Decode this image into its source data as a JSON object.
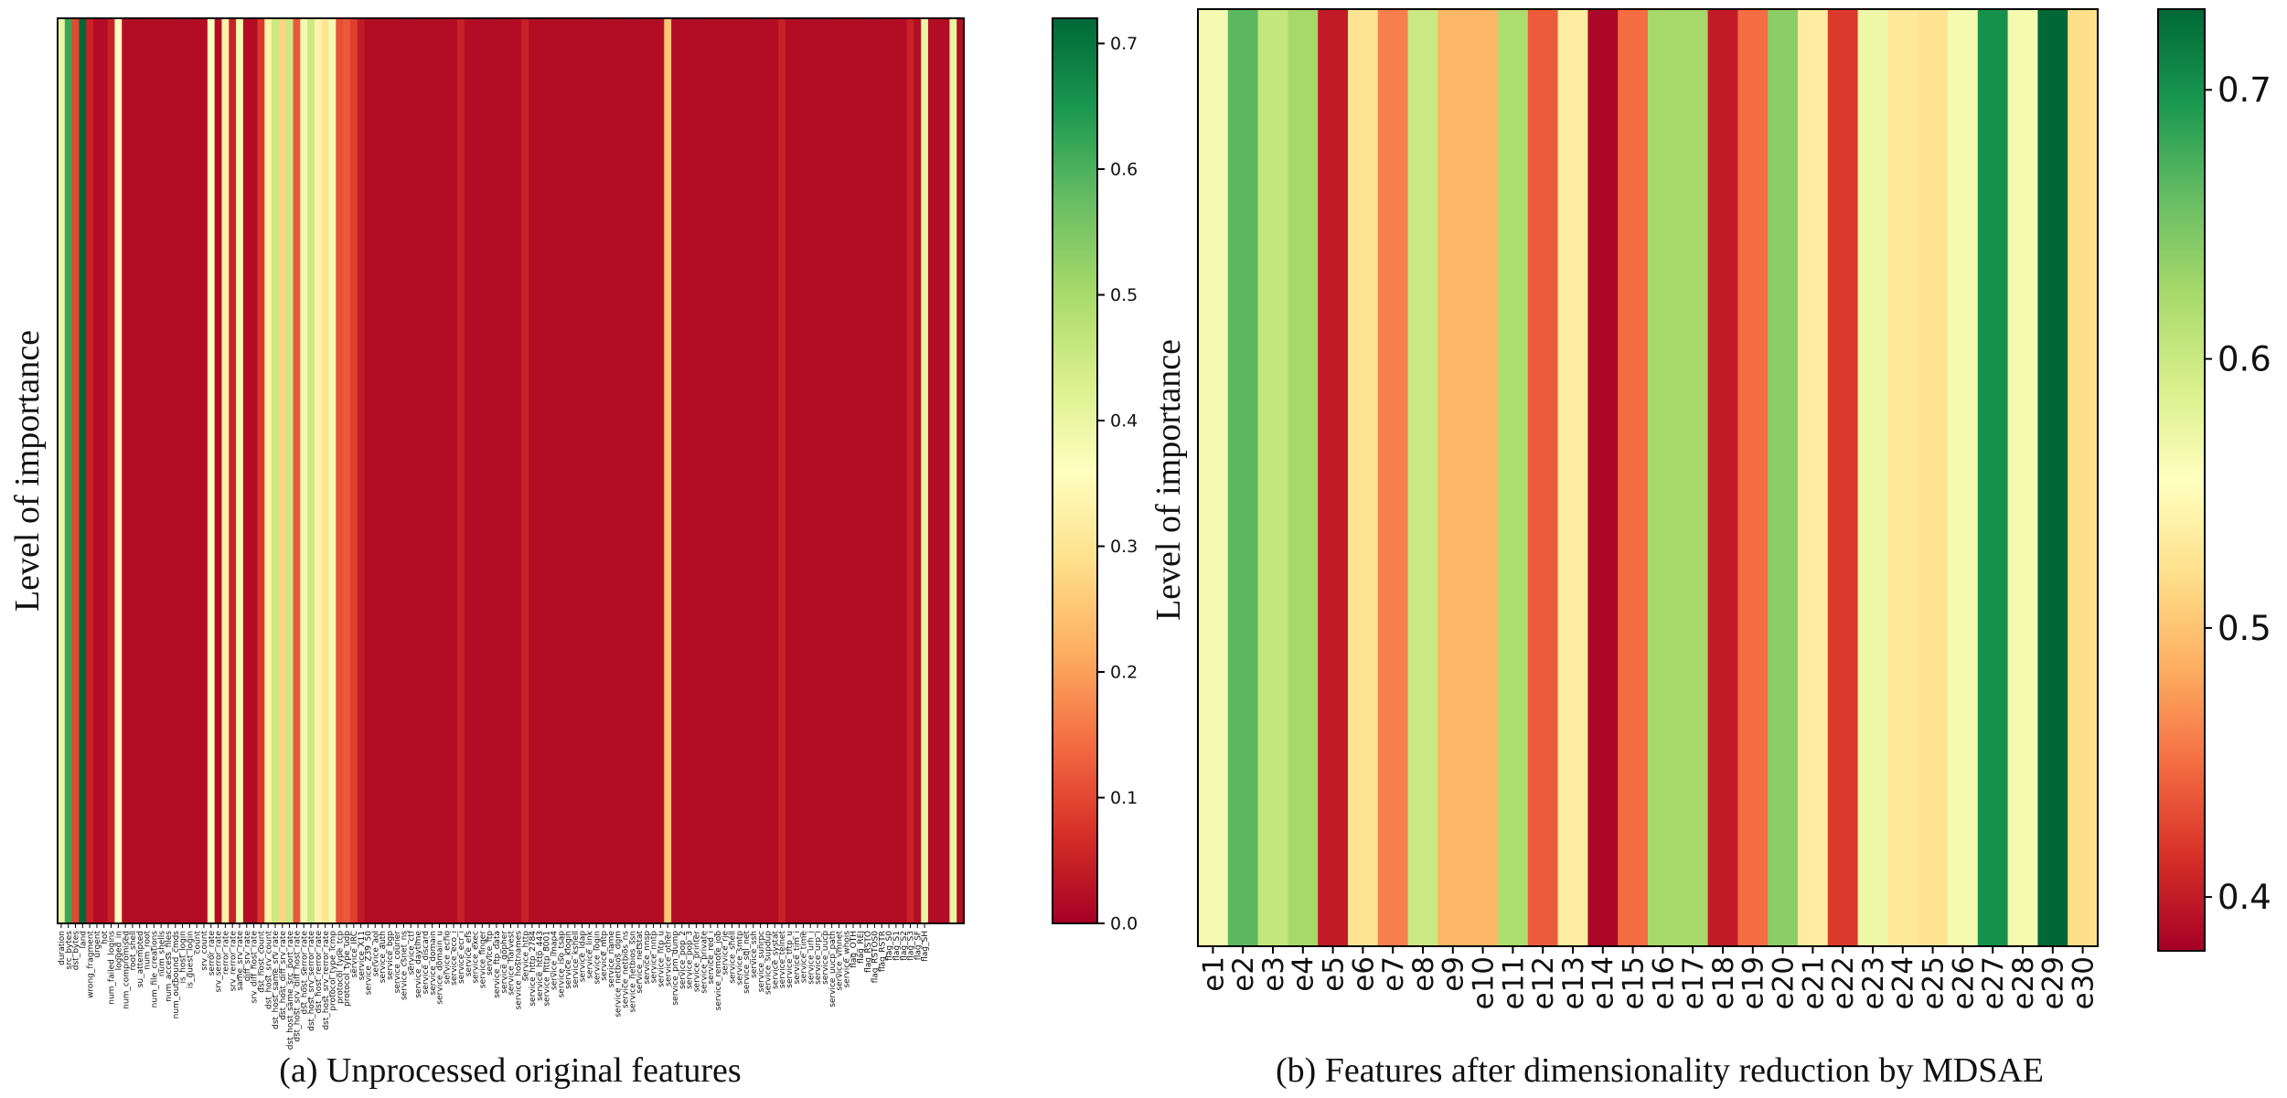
{
  "chart_data": [
    {
      "type": "heatmap",
      "title": "",
      "caption": "(a) Unprocessed original features",
      "ylabel": "Level of importance",
      "xlabel": "",
      "colormap": "RdYlGn",
      "clim": [
        0,
        0.72
      ],
      "colorbar_ticks": [
        "0.0",
        "0.1",
        "0.2",
        "0.3",
        "0.4",
        "0.5",
        "0.6",
        "0.7"
      ],
      "colorbar_tick_values": [
        0.0,
        0.1,
        0.2,
        0.3,
        0.4,
        0.5,
        0.6,
        0.7
      ],
      "features": [
        "duration",
        "src_bytes",
        "dst_bytes",
        "land",
        "wrong_fragment",
        "urgent",
        "hot",
        "num_failed_logins",
        "logged_in",
        "num_compromised",
        "root_shell",
        "su_attempted",
        "num_root",
        "num_file_creations",
        "num_shells",
        "num_access_files",
        "num_outbound_cmds",
        "is_host_login",
        "is_guest_login",
        "count",
        "srv_count",
        "serror_rate",
        "srv_serror_rate",
        "rerror_rate",
        "srv_rerror_rate",
        "same_srv_rate",
        "diff_srv_rate",
        "srv_diff_host_rate",
        "dst_host_count",
        "dst_host_srv_count",
        "dst_host_same_srv_rate",
        "dst_host_diff_srv_rate",
        "dst_host_same_src_port_rate",
        "dst_host_srv_diff_host_rate",
        "dst_host_serror_rate",
        "dst_host_srv_serror_rate",
        "dst_host_rerror_rate",
        "dst_host_srv_rerror_rate",
        "protocol_type_icmp",
        "protocol_type_tcp",
        "protocol_type_udp",
        "service_IRC",
        "service_X11",
        "service_Z39_50",
        "service_aol",
        "service_auth",
        "service_bgp",
        "service_courier",
        "service_csnet_ns",
        "service_ctf",
        "service_daytime",
        "service_discard",
        "service_domain",
        "service_domain_u",
        "service_echo",
        "service_eco_i",
        "service_ecr_i",
        "service_efs",
        "service_exec",
        "service_finger",
        "service_ftp",
        "service_ftp_data",
        "service_gopher",
        "service_harvest",
        "service_hostnames",
        "service_http",
        "service_http_2784",
        "service_http_443",
        "service_http_8001",
        "service_imap4",
        "service_iso_tsap",
        "service_klogin",
        "service_kshell",
        "service_ldap",
        "service_link",
        "service_login",
        "service_mtp",
        "service_name",
        "service_netbios_dgm",
        "service_netbios_ns",
        "service_netbios_ssn",
        "service_netstat",
        "service_nnsp",
        "service_nntp",
        "service_ntp_u",
        "service_other",
        "service_pm_dump",
        "service_pop_2",
        "service_pop_3",
        "service_printer",
        "service_private",
        "service_red_i",
        "service_remote_job",
        "service_rje",
        "service_shell",
        "service_smtp",
        "service_sql_net",
        "service_ssh",
        "service_sunrpc",
        "service_supdup",
        "service_systat",
        "service_telnet",
        "service_tftp_u",
        "service_tim_i",
        "service_time",
        "service_urh_i",
        "service_urp_i",
        "service_uucp",
        "service_uucp_path",
        "service_vmnet",
        "service_whois",
        "flag_OTH",
        "flag_REJ",
        "flag_RSTO",
        "flag_RSTOS0",
        "flag_RSTR",
        "flag_S0",
        "flag_S1",
        "flag_S2",
        "flag_S3",
        "flag_SF",
        "flag_SH"
      ],
      "values": [
        0.4,
        0.62,
        0.1,
        0.72,
        0.05,
        0.02,
        0.02,
        0.05,
        0.36,
        0.02,
        0.02,
        0.02,
        0.02,
        0.02,
        0.02,
        0.02,
        0.02,
        0.02,
        0.02,
        0.02,
        0.02,
        0.36,
        0.02,
        0.33,
        0.05,
        0.38,
        0.02,
        0.02,
        0.08,
        0.33,
        0.45,
        0.27,
        0.45,
        0.12,
        0.38,
        0.45,
        0.33,
        0.3,
        0.38,
        0.11,
        0.12,
        0.09,
        0.04,
        0.02,
        0.02,
        0.02,
        0.02,
        0.02,
        0.02,
        0.02,
        0.02,
        0.02,
        0.02,
        0.02,
        0.02,
        0.02,
        0.05,
        0.02,
        0.02,
        0.02,
        0.02,
        0.02,
        0.02,
        0.02,
        0.02,
        0.05,
        0.02,
        0.02,
        0.02,
        0.02,
        0.02,
        0.02,
        0.02,
        0.02,
        0.02,
        0.02,
        0.02,
        0.02,
        0.02,
        0.02,
        0.02,
        0.02,
        0.02,
        0.02,
        0.02,
        0.25,
        0.02,
        0.02,
        0.02,
        0.02,
        0.02,
        0.02,
        0.02,
        0.02,
        0.02,
        0.02,
        0.02,
        0.02,
        0.02,
        0.02,
        0.02,
        0.05,
        0.02,
        0.02,
        0.02,
        0.02,
        0.02,
        0.02,
        0.02,
        0.02,
        0.02,
        0.02,
        0.02,
        0.02,
        0.02,
        0.02,
        0.02,
        0.02,
        0.02,
        0.05,
        0.02,
        0.4,
        0.02,
        0.02,
        0.02,
        0.4,
        0.02
      ]
    },
    {
      "type": "heatmap",
      "title": "",
      "caption": "(b) Features after dimensionality reduction by MDSAE",
      "ylabel": "Level of importance",
      "xlabel": "",
      "colormap": "RdYlGn",
      "clim": [
        0.38,
        0.73
      ],
      "colorbar_ticks": [
        "0.4",
        "0.5",
        "0.6",
        "0.7"
      ],
      "colorbar_tick_values": [
        0.4,
        0.5,
        0.6,
        0.7
      ],
      "features": [
        "e1",
        "e2",
        "e3",
        "e4",
        "e5",
        "e6",
        "e7",
        "e8",
        "e9",
        "e10",
        "e11",
        "e12",
        "e13",
        "e14",
        "e15",
        "e16",
        "e17",
        "e18",
        "e19",
        "e20",
        "e21",
        "e22",
        "e23",
        "e24",
        "e25",
        "e26",
        "e27",
        "e28",
        "e29",
        "e30"
      ],
      "values": [
        0.565,
        0.665,
        0.605,
        0.625,
        0.4,
        0.525,
        0.46,
        0.6,
        0.49,
        0.49,
        0.62,
        0.44,
        0.535,
        0.385,
        0.45,
        0.625,
        0.625,
        0.4,
        0.45,
        0.64,
        0.535,
        0.42,
        0.57,
        0.53,
        0.525,
        0.565,
        0.7,
        0.565,
        0.73,
        0.52
      ]
    }
  ]
}
